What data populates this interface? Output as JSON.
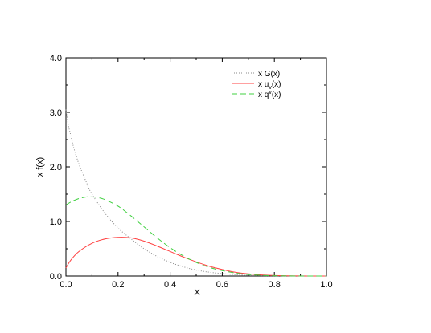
{
  "chart_data": {
    "type": "line",
    "xlabel": "X",
    "ylabel": "x f(x)",
    "xlim": [
      0.0,
      1.0
    ],
    "ylim": [
      0.0,
      4.0
    ],
    "x_ticks": [
      0.0,
      0.2,
      0.4,
      0.6,
      0.8,
      1.0
    ],
    "x_tick_labels": [
      "0.0",
      "0.2",
      "0.4",
      "0.6",
      "0.8",
      "1.0"
    ],
    "y_ticks": [
      0.0,
      1.0,
      2.0,
      3.0,
      4.0
    ],
    "y_tick_labels": [
      "0.0",
      "1.0",
      "2.0",
      "3.0",
      "4.0"
    ],
    "grid": false,
    "legend_position": "top-right",
    "series": [
      {
        "name": "x G(x)",
        "legend_main": "x G(x)",
        "legend_sub": "",
        "legend_sup": "",
        "legend_tail": "",
        "color": "#888888",
        "dash": "dotted",
        "x": [
          0.0,
          0.01,
          0.02,
          0.03,
          0.05,
          0.08,
          0.1,
          0.15,
          0.2,
          0.25,
          0.3,
          0.35,
          0.4,
          0.45,
          0.5,
          0.55,
          0.6,
          0.65,
          0.7,
          0.75,
          0.8,
          0.85,
          0.9,
          0.95,
          1.0
        ],
        "y": [
          3.05,
          2.75,
          2.55,
          2.35,
          2.05,
          1.7,
          1.5,
          1.15,
          0.88,
          0.68,
          0.5,
          0.36,
          0.25,
          0.17,
          0.11,
          0.07,
          0.045,
          0.025,
          0.013,
          0.006,
          0.003,
          0.001,
          0.0,
          0.0,
          0.0
        ]
      },
      {
        "name": "x u_v(x)",
        "legend_main": "x u",
        "legend_sub": "v",
        "legend_sup": "",
        "legend_tail": "(x)",
        "color": "#ff4040",
        "dash": "solid",
        "x": [
          0.0,
          0.02,
          0.05,
          0.1,
          0.15,
          0.2,
          0.25,
          0.3,
          0.35,
          0.4,
          0.45,
          0.5,
          0.55,
          0.6,
          0.65,
          0.7,
          0.75,
          0.8,
          0.85,
          0.9,
          0.95,
          1.0
        ],
        "y": [
          0.15,
          0.3,
          0.45,
          0.6,
          0.68,
          0.71,
          0.7,
          0.64,
          0.55,
          0.45,
          0.35,
          0.26,
          0.18,
          0.12,
          0.07,
          0.04,
          0.02,
          0.01,
          0.004,
          0.001,
          0.0,
          0.0
        ]
      },
      {
        "name": "x q^v(x)",
        "legend_main": "x q",
        "legend_sub": "",
        "legend_sup": "v",
        "legend_tail": "(x)",
        "color": "#40d040",
        "dash": "dashed",
        "x": [
          0.0,
          0.02,
          0.05,
          0.08,
          0.1,
          0.12,
          0.15,
          0.2,
          0.25,
          0.3,
          0.35,
          0.4,
          0.45,
          0.5,
          0.55,
          0.6,
          0.65,
          0.7,
          0.75,
          0.8,
          0.85,
          0.9,
          0.95,
          1.0
        ],
        "y": [
          1.3,
          1.36,
          1.42,
          1.45,
          1.45,
          1.44,
          1.4,
          1.28,
          1.1,
          0.9,
          0.7,
          0.52,
          0.37,
          0.25,
          0.16,
          0.1,
          0.055,
          0.028,
          0.013,
          0.005,
          0.002,
          0.0,
          0.0,
          0.0
        ]
      }
    ]
  }
}
